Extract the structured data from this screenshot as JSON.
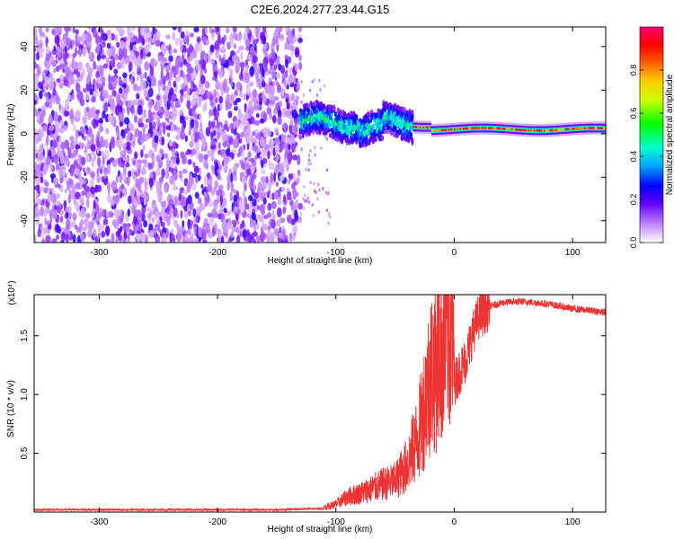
{
  "figure": {
    "title": "C2E6.2024.277.23.44.G15"
  },
  "chart_data": [
    {
      "type": "heatmap",
      "xlabel": "Height of straight line (km)",
      "ylabel": "Frequency (Hz)",
      "xlim": [
        -355,
        128
      ],
      "ylim": [
        -50,
        49
      ],
      "xticks": [
        -300,
        -200,
        -100,
        0,
        100
      ],
      "yticks": [
        -40,
        -20,
        0,
        20,
        40
      ],
      "colorbar": {
        "label": "Normalized spectral amplitude",
        "range": [
          0.0,
          1.0
        ],
        "ticks": [
          0.0,
          0.2,
          0.4,
          0.6,
          0.8
        ]
      },
      "regions": [
        {
          "x_range": [
            -355,
            -130
          ],
          "freq_range": [
            -50,
            49
          ],
          "amplitude": [
            0.0,
            0.3
          ],
          "pattern": "scattered noise"
        },
        {
          "x_range": [
            -130,
            -35
          ],
          "freq_center": 5,
          "freq_width": 10,
          "amplitude": [
            0.2,
            0.5
          ],
          "pattern": "broad wavy band"
        },
        {
          "x_range": [
            -35,
            128
          ],
          "freq_center": 2,
          "freq_width": 5,
          "amplitude": [
            0.5,
            1.0
          ],
          "pattern": "narrow strong band"
        }
      ]
    },
    {
      "type": "line",
      "xlabel": "Height of straight line (km)",
      "ylabel": "SNR (10 * v/v)",
      "y_multiplier": "(x10⁴)",
      "xlim": [
        -355,
        128
      ],
      "ylim": [
        0,
        1.85
      ],
      "xticks": [
        -300,
        -200,
        -100,
        0,
        100
      ],
      "yticks": [
        0.5,
        1.0,
        1.5
      ],
      "color": "#ee3333",
      "series": [
        {
          "x": [
            -355,
            -300,
            -250,
            -200,
            -150,
            -110,
            -100,
            -90,
            -80,
            -70,
            -60,
            -50,
            -40,
            -30,
            -25,
            -20,
            -15,
            -10,
            -5,
            0,
            5,
            10,
            15,
            20,
            30,
            40,
            50,
            60,
            70,
            80,
            90,
            100,
            110,
            120,
            128
          ],
          "y": [
            0.02,
            0.02,
            0.02,
            0.02,
            0.02,
            0.03,
            0.05,
            0.1,
            0.12,
            0.15,
            0.18,
            0.2,
            0.3,
            0.5,
            0.7,
            0.9,
            0.95,
            1.1,
            1.25,
            1.1,
            1.2,
            1.3,
            1.5,
            1.65,
            1.75,
            1.78,
            1.79,
            1.79,
            1.78,
            1.77,
            1.75,
            1.73,
            1.72,
            1.71,
            1.7
          ]
        }
      ]
    }
  ]
}
